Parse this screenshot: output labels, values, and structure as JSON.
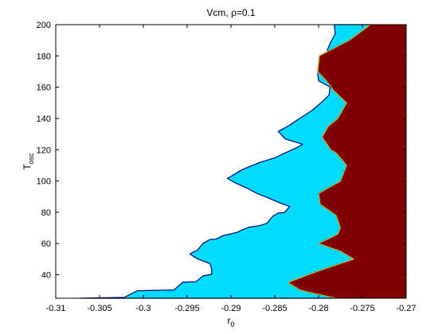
{
  "chart_data": {
    "type": "contour",
    "title": "Vcm, ρ=0.1",
    "xlabel": "r",
    "xlabel_sub": "0",
    "ylabel": "T",
    "ylabel_sub": "osc",
    "xlim": [
      -0.31,
      -0.27
    ],
    "ylim": [
      25,
      200
    ],
    "xticks": [
      -0.31,
      -0.305,
      -0.3,
      -0.295,
      -0.29,
      -0.285,
      -0.28,
      -0.275,
      -0.27
    ],
    "xtick_labels": [
      "-0.31",
      "-0.305",
      "-0.3",
      "-0.295",
      "-0.29",
      "-0.285",
      "-0.28",
      "-0.275",
      "-0.27"
    ],
    "yticks": [
      40,
      60,
      80,
      100,
      120,
      140,
      160,
      180,
      200
    ],
    "ytick_labels": [
      "40",
      "60",
      "80",
      "100",
      "120",
      "140",
      "160",
      "180",
      "200"
    ],
    "grid": false,
    "regions": [
      {
        "level": "low",
        "color": "#ffffff",
        "polygon": []
      },
      {
        "level": "mid",
        "color": "#00dcff",
        "polygon": [
          [
            -0.3072,
            25
          ],
          [
            -0.3022,
            25.5
          ],
          [
            -0.3007,
            29.8
          ],
          [
            -0.2965,
            30.3
          ],
          [
            -0.2955,
            35.2
          ],
          [
            -0.294,
            35.6
          ],
          [
            -0.2932,
            39.3
          ],
          [
            -0.2922,
            40.3
          ],
          [
            -0.2922,
            43.5
          ],
          [
            -0.2924,
            47.2
          ],
          [
            -0.2938,
            50.1
          ],
          [
            -0.2947,
            53.3
          ],
          [
            -0.2938,
            56
          ],
          [
            -0.2932,
            60
          ],
          [
            -0.2924,
            62.6
          ],
          [
            -0.2917,
            62.8
          ],
          [
            -0.2909,
            65.1
          ],
          [
            -0.2893,
            67.1
          ],
          [
            -0.2889,
            68.3
          ],
          [
            -0.2879,
            70.5
          ],
          [
            -0.2868,
            71.4
          ],
          [
            -0.2859,
            72.9
          ],
          [
            -0.2852,
            77.6
          ],
          [
            -0.2846,
            79.5
          ],
          [
            -0.2839,
            79.8
          ],
          [
            -0.2833,
            83.6
          ],
          [
            -0.2846,
            86.4
          ],
          [
            -0.2858,
            89.3
          ],
          [
            -0.2871,
            92.2
          ],
          [
            -0.2882,
            95.5
          ],
          [
            -0.2895,
            98.7
          ],
          [
            -0.2904,
            101.6
          ],
          [
            -0.2887,
            107.3
          ],
          [
            -0.2867,
            111.9
          ],
          [
            -0.285,
            114.8
          ],
          [
            -0.2838,
            118
          ],
          [
            -0.2825,
            121.3
          ],
          [
            -0.2818,
            123.5
          ],
          [
            -0.2838,
            126.9
          ],
          [
            -0.2846,
            131.7
          ],
          [
            -0.2834,
            135.4
          ],
          [
            -0.2821,
            140.2
          ],
          [
            -0.2807,
            145.3
          ],
          [
            -0.2796,
            150.6
          ],
          [
            -0.2788,
            155.1
          ],
          [
            -0.2787,
            160.1
          ],
          [
            -0.28,
            164.1
          ],
          [
            -0.2801,
            168.9
          ],
          [
            -0.2792,
            174.3
          ],
          [
            -0.2789,
            179.5
          ],
          [
            -0.279,
            183.8
          ],
          [
            -0.2786,
            188.9
          ],
          [
            -0.2781,
            194.2
          ],
          [
            -0.2782,
            199.5
          ],
          [
            -0.2781,
            200
          ],
          [
            -0.278,
            200
          ],
          [
            -0.2741,
            200
          ],
          [
            -0.2765,
            190
          ],
          [
            -0.2799,
            180
          ],
          [
            -0.2801,
            170
          ],
          [
            -0.2791,
            164
          ],
          [
            -0.2783,
            158
          ],
          [
            -0.2768,
            150
          ],
          [
            -0.2778,
            140
          ],
          [
            -0.2789,
            135
          ],
          [
            -0.2796,
            128
          ],
          [
            -0.2786,
            120
          ],
          [
            -0.278,
            118
          ],
          [
            -0.2768,
            110
          ],
          [
            -0.2775,
            100
          ],
          [
            -0.28,
            92
          ],
          [
            -0.2798,
            85
          ],
          [
            -0.278,
            78
          ],
          [
            -0.2775,
            70
          ],
          [
            -0.2778,
            66
          ],
          [
            -0.28,
            60
          ],
          [
            -0.2775,
            55
          ],
          [
            -0.276,
            50
          ],
          [
            -0.2787,
            45
          ],
          [
            -0.2812,
            40
          ],
          [
            -0.2835,
            35
          ],
          [
            -0.282,
            30
          ],
          [
            -0.278,
            25
          ]
        ]
      },
      {
        "level": "high",
        "color": "#800000",
        "polygon": [
          [
            -0.2741,
            200
          ],
          [
            -0.2765,
            190
          ],
          [
            -0.2799,
            180
          ],
          [
            -0.2801,
            170
          ],
          [
            -0.2791,
            164
          ],
          [
            -0.2783,
            158
          ],
          [
            -0.2768,
            150
          ],
          [
            -0.2778,
            140
          ],
          [
            -0.2789,
            135
          ],
          [
            -0.2796,
            128
          ],
          [
            -0.2786,
            120
          ],
          [
            -0.278,
            118
          ],
          [
            -0.2768,
            110
          ],
          [
            -0.2775,
            100
          ],
          [
            -0.28,
            92
          ],
          [
            -0.2798,
            85
          ],
          [
            -0.278,
            78
          ],
          [
            -0.2775,
            70
          ],
          [
            -0.2778,
            66
          ],
          [
            -0.28,
            60
          ],
          [
            -0.2775,
            55
          ],
          [
            -0.276,
            50
          ],
          [
            -0.2787,
            45
          ],
          [
            -0.2812,
            40
          ],
          [
            -0.2835,
            35
          ],
          [
            -0.282,
            30
          ],
          [
            -0.278,
            25
          ],
          [
            -0.27,
            25
          ],
          [
            -0.27,
            200
          ]
        ]
      }
    ],
    "edge_colors": {
      "low_mid": "#00007f",
      "mid_high": "#ffff00"
    }
  }
}
